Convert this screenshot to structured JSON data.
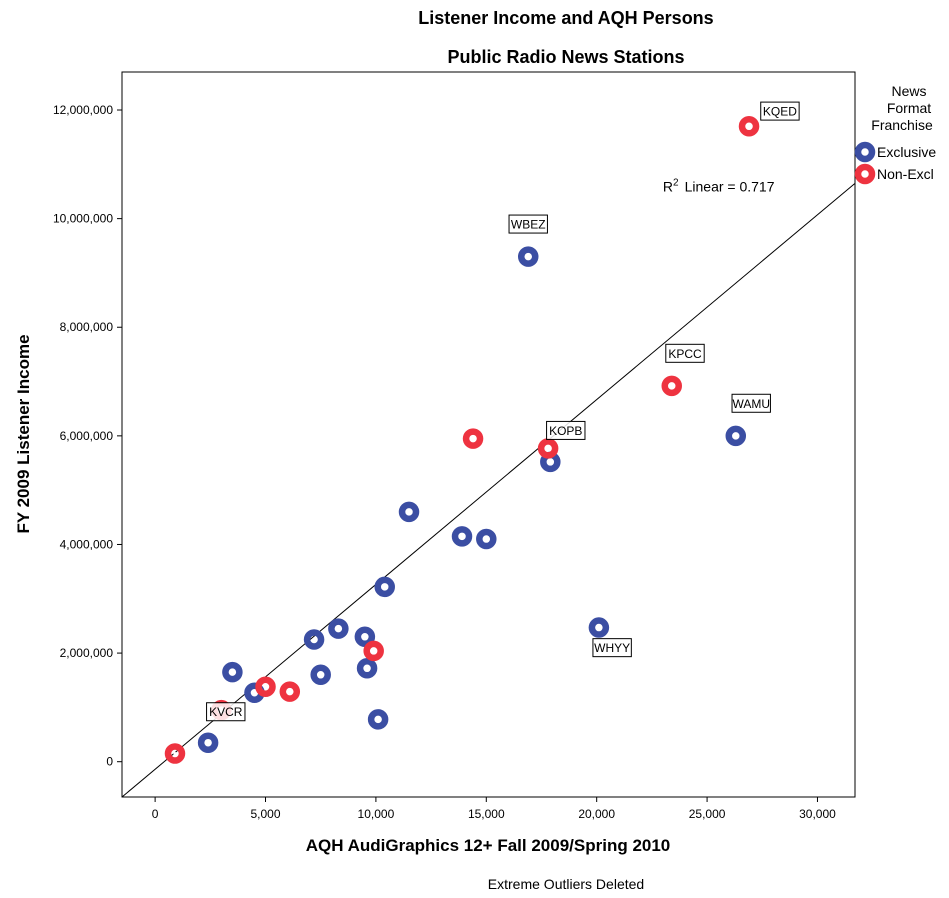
{
  "chart_data": {
    "type": "scatter",
    "title": "Listener Income and AQH Persons",
    "subtitle": "Public Radio News Stations",
    "xlabel": "AQH AudiGraphics 12+ Fall 2009/Spring 2010",
    "ylabel": "FY 2009 Listener Income",
    "footnote": "Extreme Outliers Deleted",
    "xlim": [
      -1500,
      31700
    ],
    "ylim": [
      -650000,
      12700000
    ],
    "x_ticks": [
      0,
      5000,
      10000,
      15000,
      20000,
      25000,
      30000
    ],
    "x_tick_labels": [
      "0",
      "5,000",
      "10,000",
      "15,000",
      "20,000",
      "25,000",
      "30,000"
    ],
    "y_ticks": [
      0,
      2000000,
      4000000,
      6000000,
      8000000,
      10000000,
      12000000
    ],
    "y_tick_labels": [
      "0",
      "2,000,000",
      "4,000,000",
      "6,000,000",
      "8,000,000",
      "10,000,000",
      "12,000,000"
    ],
    "grid": false,
    "legend": {
      "title_lines": [
        "News",
        "Format",
        "Franchise"
      ],
      "placement": "right",
      "entries": [
        {
          "label": "Exclusive",
          "color": "#3b4ea3"
        },
        {
          "label": "Non-Excl",
          "color": "#ee3340"
        }
      ]
    },
    "fit_line": {
      "label": "R² Linear = 0.717",
      "label_prefix": "R",
      "label_superscript": "2",
      "label_suffix": "Linear = 0.717",
      "label_at": [
        23000,
        10500000
      ],
      "points": [
        [
          -1500,
          -650000
        ],
        [
          31700,
          10650000
        ]
      ]
    },
    "series": [
      {
        "name": "Exclusive",
        "color": "#3b4ea3",
        "points": [
          {
            "x": 16900,
            "y": 9300000,
            "label": "WBEZ",
            "label_at": [
              16900,
              9900000
            ]
          },
          {
            "x": 17900,
            "y": 5520000
          },
          {
            "x": 26300,
            "y": 6000000,
            "label": "WAMU",
            "label_at": [
              27000,
              6600000
            ]
          },
          {
            "x": 20100,
            "y": 2470000,
            "label": "WHYY",
            "label_at": [
              20700,
              2100000
            ]
          },
          {
            "x": 11500,
            "y": 4600000
          },
          {
            "x": 13900,
            "y": 4150000
          },
          {
            "x": 15000,
            "y": 4100000
          },
          {
            "x": 10400,
            "y": 3220000
          },
          {
            "x": 8300,
            "y": 2450000
          },
          {
            "x": 7200,
            "y": 2250000
          },
          {
            "x": 9500,
            "y": 2300000
          },
          {
            "x": 9600,
            "y": 1720000
          },
          {
            "x": 7500,
            "y": 1600000
          },
          {
            "x": 3500,
            "y": 1650000
          },
          {
            "x": 4500,
            "y": 1270000
          },
          {
            "x": 10100,
            "y": 780000
          },
          {
            "x": 2400,
            "y": 350000
          }
        ]
      },
      {
        "name": "Non-Excl",
        "color": "#ee3340",
        "points": [
          {
            "x": 26900,
            "y": 11700000,
            "label": "KQED",
            "label_at": [
              28300,
              11980000
            ]
          },
          {
            "x": 23400,
            "y": 6920000,
            "label": "KPCC",
            "label_at": [
              24000,
              7520000
            ]
          },
          {
            "x": 17800,
            "y": 5770000,
            "label": "KOPB",
            "label_at": [
              18600,
              6100000
            ]
          },
          {
            "x": 14400,
            "y": 5950000
          },
          {
            "x": 9900,
            "y": 2040000
          },
          {
            "x": 5000,
            "y": 1380000
          },
          {
            "x": 6100,
            "y": 1290000
          },
          {
            "x": 3000,
            "y": 950000,
            "label": "KVCR",
            "label_at": [
              3200,
              920000
            ]
          },
          {
            "x": 900,
            "y": 150000
          }
        ]
      }
    ]
  }
}
